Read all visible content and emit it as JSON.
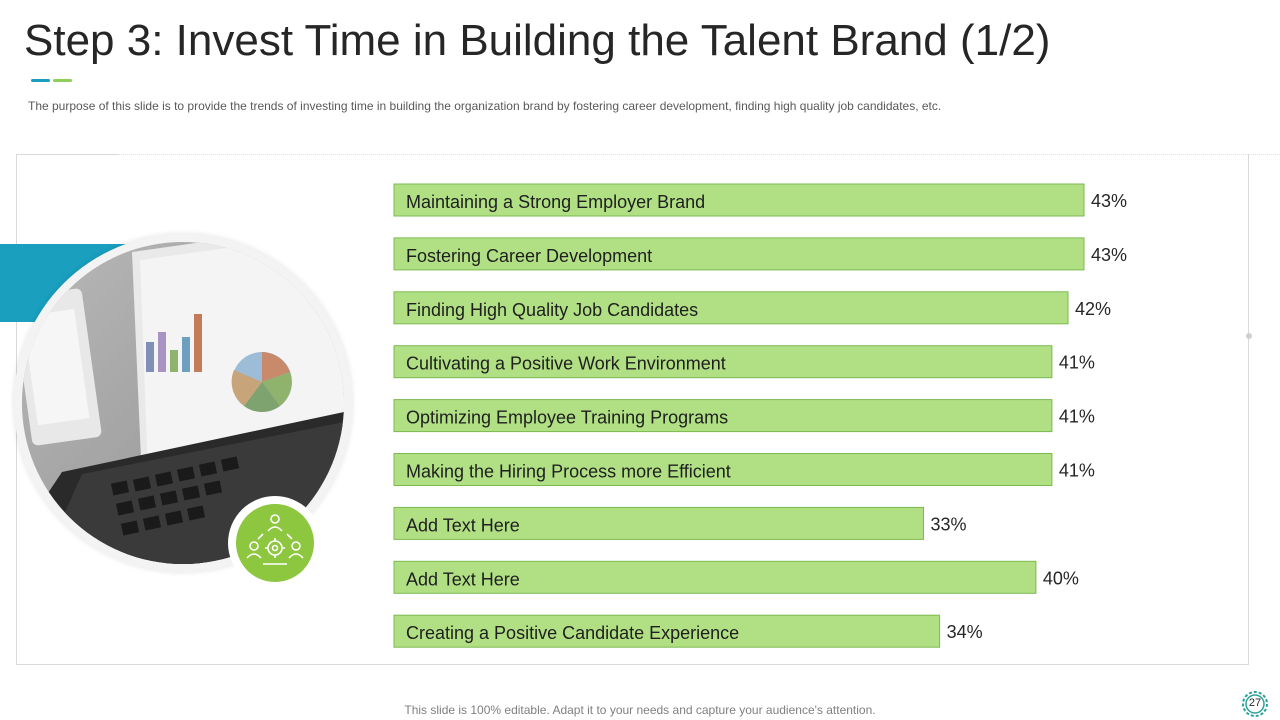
{
  "slide": {
    "title": "Step 3: Invest Time in Building the Talent Brand (1/2)",
    "subtitle": "The purpose of this slide is to provide the trends of investing time in building the organization brand by fostering career development, finding high quality job candidates, etc.",
    "footer": "This slide is 100% editable. Adapt it to your needs and capture your audience's attention.",
    "page_number": "27"
  },
  "colors": {
    "accent_teal": "#1a9fbf",
    "accent_green": "#8dcf5a",
    "bar_fill": "#b0df84",
    "bar_stroke": "#7cb950",
    "badge_green": "#8dc63f"
  },
  "icons": {
    "badge": "team-gear-icon",
    "page": "gear-icon"
  },
  "chart_data": {
    "type": "bar",
    "orientation": "horizontal",
    "title": "",
    "xlabel": "",
    "ylabel": "",
    "xlim": [
      0,
      43
    ],
    "value_suffix": "%",
    "categories": [
      "Maintaining a Strong Employer Brand",
      "Fostering Career Development",
      "Finding High Quality Job Candidates",
      "Cultivating a Positive Work Environment",
      "Optimizing Employee Training Programs",
      "Making the Hiring Process more Efficient",
      "Add Text Here",
      "Add Text Here",
      "Creating a Positive Candidate Experience"
    ],
    "values": [
      43,
      43,
      42,
      41,
      41,
      41,
      33,
      40,
      34
    ],
    "value_labels": [
      "43%",
      "43%",
      "42%",
      "41%",
      "41%",
      "41%",
      "33%",
      "40%",
      "34%"
    ]
  }
}
